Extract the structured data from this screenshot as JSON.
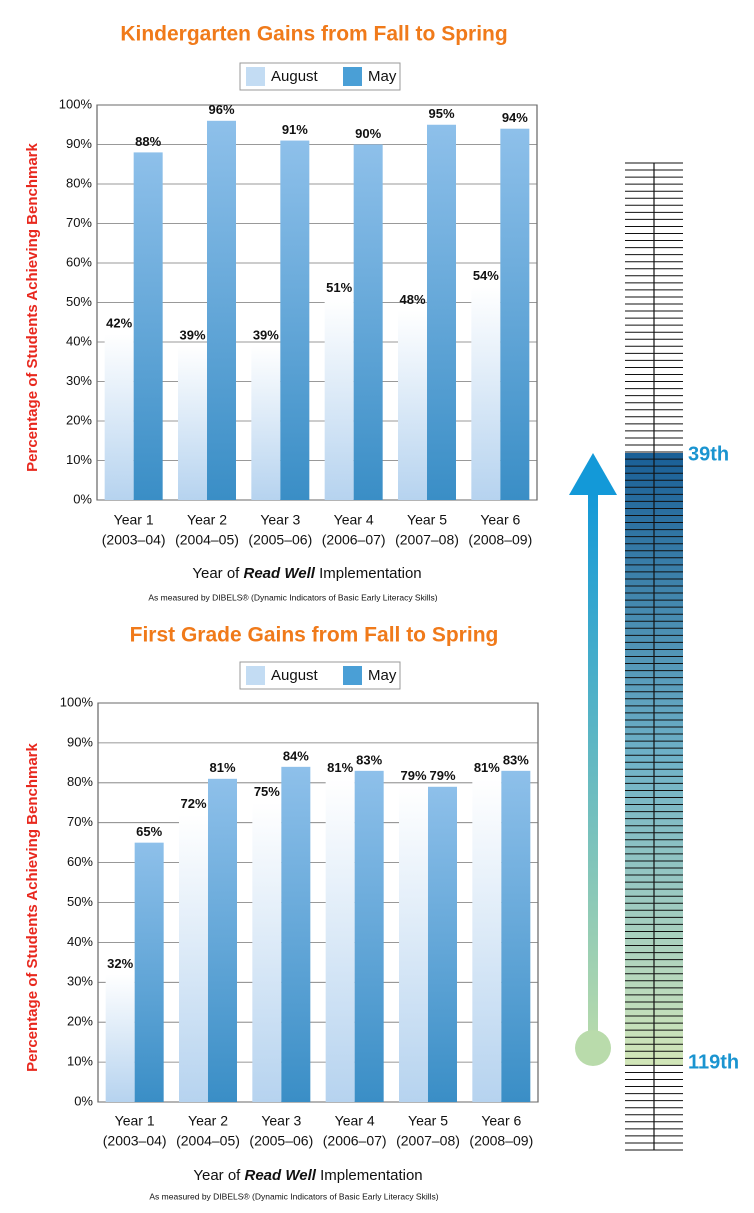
{
  "chart_data": [
    {
      "type": "bar",
      "title": "Kindergarten Gains from Fall to Spring",
      "ylabel": "Percentage of Students Achieving Benchmark",
      "xlabel_parts": [
        "Year of ",
        "Read Well",
        " Implementation"
      ],
      "note": "As measured by DIBELS® (Dynamic Indicators of Basic Early Literacy Skills)",
      "categories": [
        "Year 1",
        "Year 2",
        "Year 3",
        "Year 4",
        "Year 5",
        "Year 6"
      ],
      "category_years": [
        "(2003–04)",
        "(2004–05)",
        "(2005–06)",
        "(2006–07)",
        "(2007–08)",
        "(2008–09)"
      ],
      "series": [
        {
          "name": "August",
          "color": "#c3dcf3",
          "values": [
            42,
            39,
            39,
            51,
            48,
            54
          ],
          "value_labels": [
            "42%",
            "39%",
            "39%",
            "51%",
            "48%",
            "54%"
          ]
        },
        {
          "name": "May",
          "color": "#4a9fd6",
          "values": [
            88,
            96,
            91,
            90,
            95,
            94
          ],
          "value_labels": [
            "88%",
            "96%",
            "91%",
            "90%",
            "95%",
            "94%"
          ]
        }
      ],
      "ylim": [
        0,
        100
      ],
      "yticks": [
        {
          "value": 0,
          "label": "0%"
        },
        {
          "value": 10,
          "label": "10%"
        },
        {
          "value": 20,
          "label": "20%"
        },
        {
          "value": 30,
          "label": "30%"
        },
        {
          "value": 40,
          "label": "40%"
        },
        {
          "value": 50,
          "label": "50%"
        },
        {
          "value": 60,
          "label": "60%"
        },
        {
          "value": 70,
          "label": "70%"
        },
        {
          "value": 80,
          "label": "80%"
        },
        {
          "value": 90,
          "label": "90%"
        },
        {
          "value": 100,
          "label": "100%"
        }
      ],
      "grid": true
    },
    {
      "type": "bar",
      "title": "First Grade Gains from Fall to Spring",
      "ylabel": "Percentage of Students Achieving Benchmark",
      "xlabel_parts": [
        "Year of ",
        "Read Well",
        " Implementation"
      ],
      "note": "As measured by DIBELS® (Dynamic Indicators of Basic Early Literacy Skills)",
      "categories": [
        "Year 1",
        "Year 2",
        "Year 3",
        "Year 4",
        "Year 5",
        "Year 6"
      ],
      "category_years": [
        "(2003–04)",
        "(2004–05)",
        "(2005–06)",
        "(2006–07)",
        "(2007–08)",
        "(2008–09)"
      ],
      "series": [
        {
          "name": "August",
          "color": "#c3dcf3",
          "values": [
            32,
            72,
            75,
            81,
            79,
            81
          ],
          "value_labels": [
            "32%",
            "72%",
            "75%",
            "81%",
            "79%",
            "81%"
          ]
        },
        {
          "name": "May",
          "color": "#4a9fd6",
          "values": [
            65,
            81,
            84,
            83,
            79,
            83
          ],
          "value_labels": [
            "65%",
            "81%",
            "84%",
            "83%",
            "79%",
            "83%"
          ]
        }
      ],
      "ylim": [
        0,
        100
      ],
      "yticks": [
        {
          "value": 0,
          "label": "0%"
        },
        {
          "value": 10,
          "label": "10%"
        },
        {
          "value": 20,
          "label": "20%"
        },
        {
          "value": 30,
          "label": "30%"
        },
        {
          "value": 40,
          "label": "40%"
        },
        {
          "value": 50,
          "label": "50%"
        },
        {
          "value": 60,
          "label": "60%"
        },
        {
          "value": 70,
          "label": "70%"
        },
        {
          "value": 80,
          "label": "80%"
        },
        {
          "value": 90,
          "label": "90%"
        },
        {
          "value": 100,
          "label": "100%"
        }
      ],
      "grid": true
    }
  ],
  "ranking": {
    "top_label": "39th",
    "bottom_label": "119th"
  }
}
